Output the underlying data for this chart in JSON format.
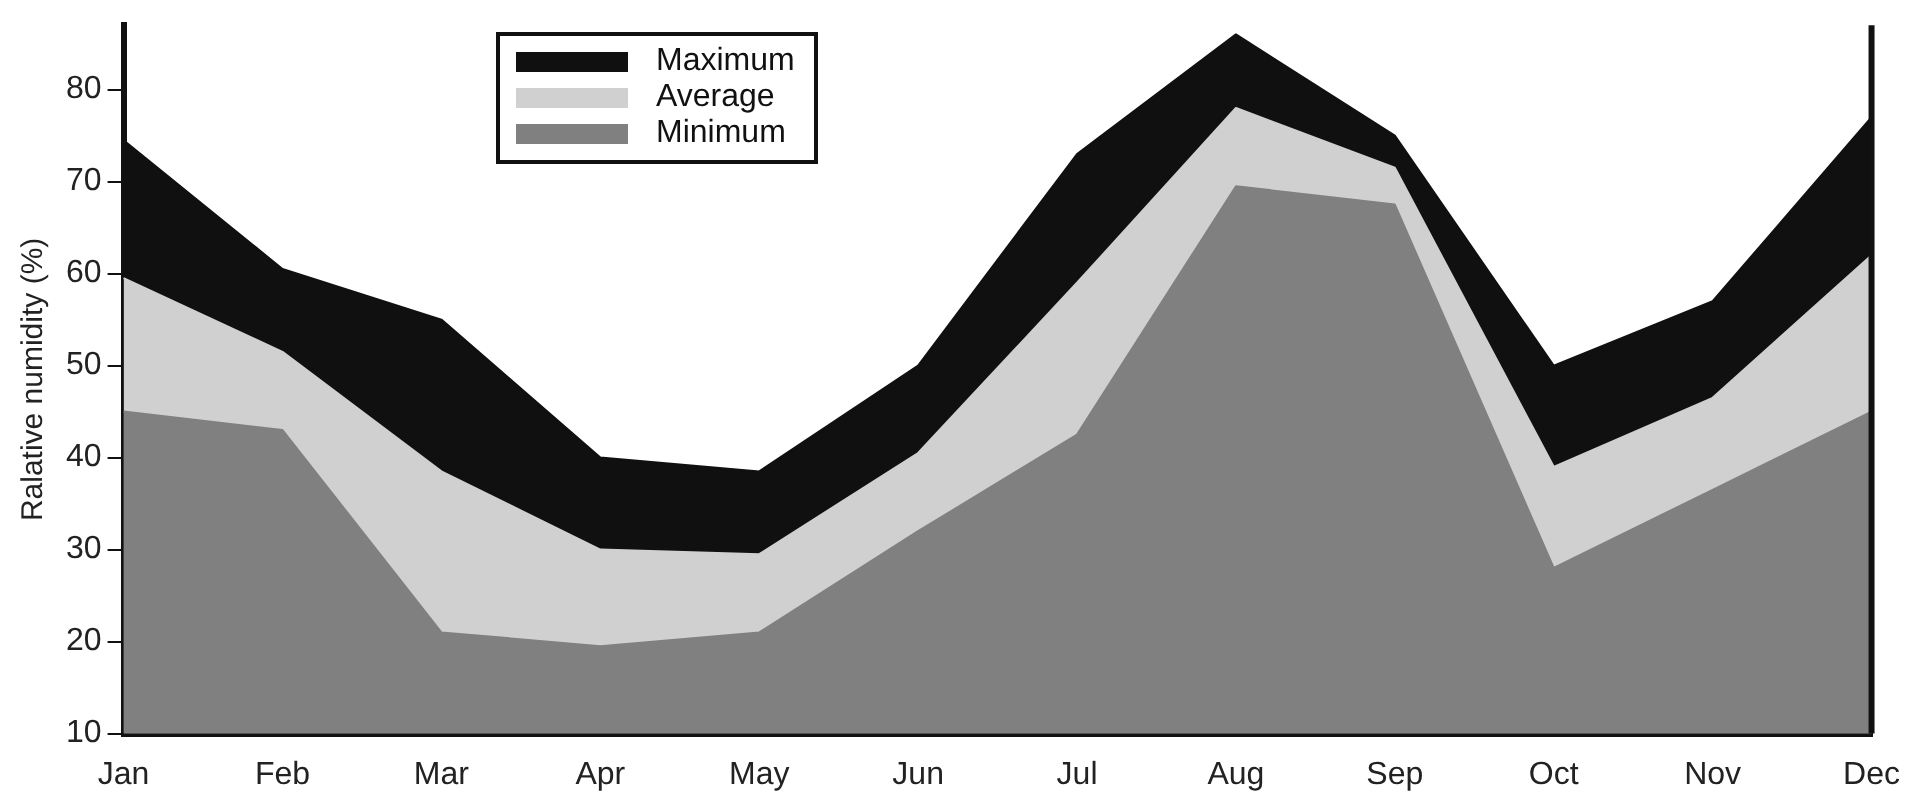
{
  "chart_data": {
    "type": "area",
    "ylabel": "Ralative numidity (%)",
    "categories": [
      "Jan",
      "Feb",
      "Mar",
      "Apr",
      "May",
      "Jun",
      "Jul",
      "Aug",
      "Sep",
      "Oct",
      "Nov",
      "Dec"
    ],
    "series": [
      {
        "name": "Maximum",
        "color": "#101010",
        "values": [
          74.5,
          60.5,
          55,
          40,
          38.5,
          50,
          73,
          86,
          75,
          50,
          57,
          77
        ]
      },
      {
        "name": "Average",
        "color": "#d0d0d0",
        "values": [
          59.5,
          51.5,
          38.5,
          30,
          29.5,
          40.5,
          59,
          78,
          71.5,
          39,
          46.5,
          62
        ]
      },
      {
        "name": "Minimum",
        "color": "#808080",
        "values": [
          45,
          43,
          21,
          19.5,
          21,
          32,
          42.5,
          69.5,
          67.5,
          28,
          36.5,
          45
        ]
      }
    ],
    "ylim": [
      10,
      87
    ],
    "yticks": [
      10,
      20,
      30,
      40,
      50,
      60,
      70,
      80
    ],
    "grid": false,
    "legend": "top"
  }
}
